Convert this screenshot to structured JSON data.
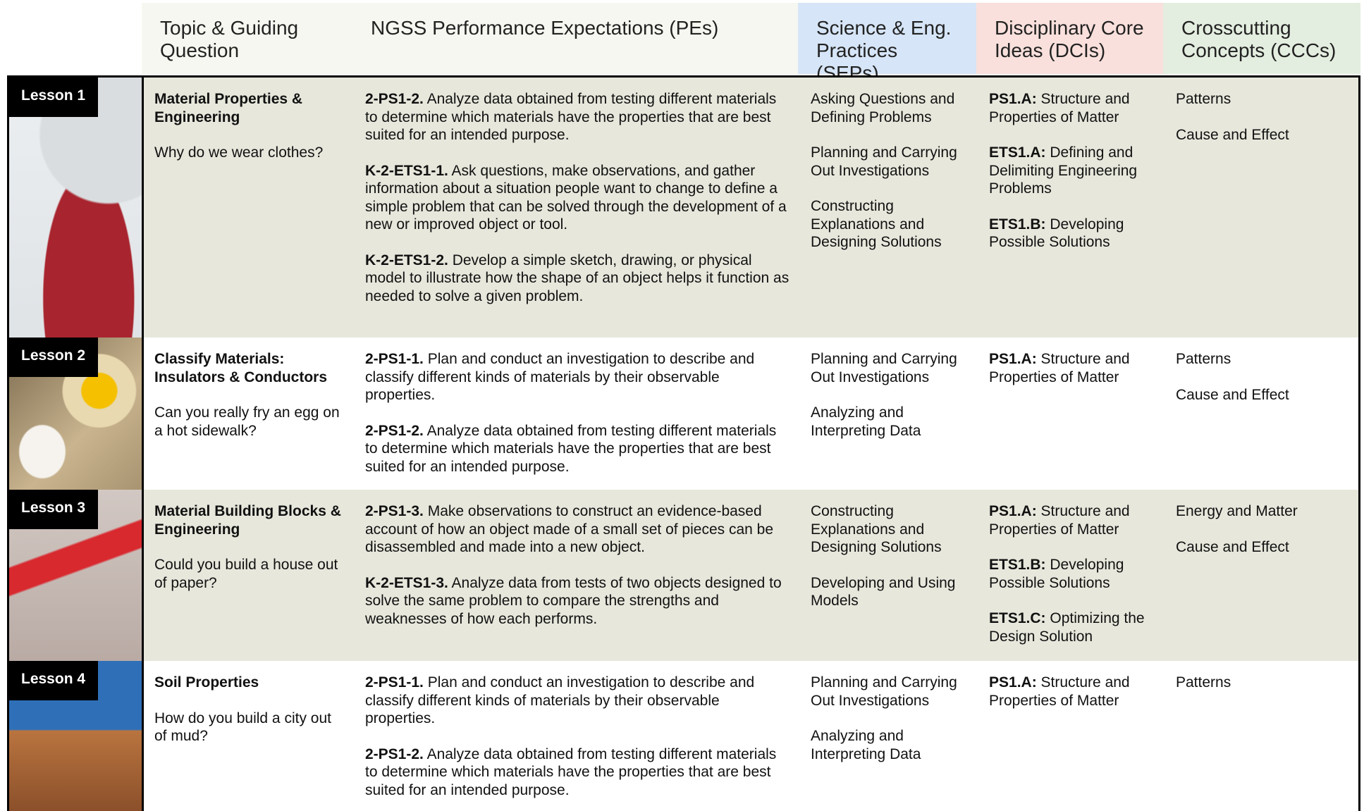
{
  "header": {
    "columns": [
      "Topic & Guiding Question",
      "NGSS Performance Expectations (PEs)",
      "Science & Eng. Practices (SEPs)",
      "Disciplinary Core Ideas (DCIs)",
      "Crosscutting Concepts (CCCs)"
    ]
  },
  "lessons": [
    {
      "label": "Lesson 1",
      "topic": "Material Properties & Engineering",
      "question": "Why do we wear clothes?",
      "pes": [
        {
          "code": "2-PS1-2.",
          "text": "Analyze data obtained from testing different materials to determine which materials have the properties that are best suited for an intended purpose."
        },
        {
          "code": "K-2-ETS1-1.",
          "text": "Ask questions, make observations, and gather information about a situation people want to change to define a simple problem that can be solved through the development of a new or improved object or tool."
        },
        {
          "code": "K-2-ETS1-2.",
          "text": "Develop a simple sketch, drawing, or physical model to illustrate how the shape of an object helps it function as needed to solve a given problem."
        }
      ],
      "seps": [
        "Asking Questions and Defining Problems",
        "Planning and Carrying Out Investigations",
        "Constructing Explanations and Designing Solutions"
      ],
      "dcis": [
        {
          "code": "PS1.A:",
          "text": "Structure and Properties of Matter"
        },
        {
          "code": "ETS1.A:",
          "text": "Defining and Delimiting Engineering Problems"
        },
        {
          "code": "ETS1.B:",
          "text": "Developing Possible Solutions"
        }
      ],
      "cccs": [
        "Patterns",
        "Cause and Effect"
      ]
    },
    {
      "label": "Lesson 2",
      "topic": "Classify Materials: Insulators & Conductors",
      "question": "Can you really fry an egg on a hot sidewalk?",
      "pes": [
        {
          "code": "2-PS1-1.",
          "text": "Plan and conduct an investigation to describe and classify different kinds of materials by their observable properties."
        },
        {
          "code": "2-PS1-2.",
          "text": "Analyze data obtained from testing different materials to determine which materials have the properties that are best suited for an intended purpose."
        }
      ],
      "seps": [
        "Planning and Carrying Out Investigations",
        "Analyzing and Interpreting Data"
      ],
      "dcis": [
        {
          "code": "PS1.A:",
          "text": "Structure and Properties of Matter"
        }
      ],
      "cccs": [
        "Patterns",
        "Cause and Effect"
      ]
    },
    {
      "label": "Lesson 3",
      "topic": "Material Building Blocks & Engineering",
      "question": "Could you build a house out of paper?",
      "pes": [
        {
          "code": "2-PS1-3.",
          "text": "Make observations to construct an evidence-based account of how an object made of a small set of pieces can be disassembled and made into a new object."
        },
        {
          "code": "K-2-ETS1-3.",
          "text": "Analyze data from tests of two objects designed to solve the same problem to compare the strengths and weaknesses of how each performs."
        }
      ],
      "seps": [
        "Constructing Explanations and Designing Solutions",
        "Developing and Using Models"
      ],
      "dcis": [
        {
          "code": "PS1.A:",
          "text": "Structure and Properties of Matter"
        },
        {
          "code": "ETS1.B:",
          "text": "Developing Possible Solutions"
        },
        {
          "code": "ETS1.C:",
          "text": "Optimizing the Design Solution"
        }
      ],
      "cccs": [
        "Energy and Matter",
        "Cause and Effect"
      ]
    },
    {
      "label": "Lesson 4",
      "topic": "Soil Properties",
      "question": "How do you build a city out of mud?",
      "pes": [
        {
          "code": "2-PS1-1.",
          "text": "Plan and conduct an investigation to describe and classify different kinds of materials by their observable properties."
        },
        {
          "code": "2-PS1-2.",
          "text": "Analyze data obtained from testing different materials to determine which materials have the properties that are best suited for an intended purpose."
        }
      ],
      "seps": [
        "Planning and Carrying Out Investigations",
        "Analyzing and Interpreting Data"
      ],
      "dcis": [
        {
          "code": "PS1.A:",
          "text": "Structure and Properties of Matter"
        }
      ],
      "cccs": [
        "Patterns"
      ]
    }
  ]
}
